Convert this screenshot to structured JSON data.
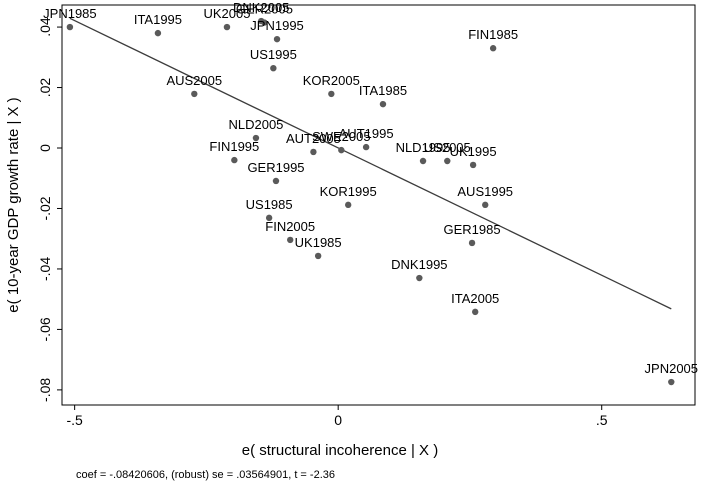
{
  "chart_data": {
    "type": "scatter",
    "xlabel": "e( structural incoherence | X )",
    "ylabel": "e( 10-year GDP growth rate | X )",
    "note": "coef = -.08420606, (robust) se = .03564901, t = -2.36",
    "color": "#5a5a5a",
    "labels": [
      "JPN1985",
      "ITA1995",
      "UK2005",
      "DNK2005",
      "GER2005",
      "JPN1995",
      "FIN1985",
      "US1995",
      "AUS2005",
      "KOR2005",
      "ITA1985",
      "NLD2005",
      "AUT1995",
      "SWE2005",
      "AUT2005",
      "FIN1995",
      "NLD1995",
      "US2005",
      "UK1995",
      "GER1995",
      "KOR1995",
      "AUS1995",
      "US1985",
      "FIN2005",
      "GER1985",
      "UK1985",
      "DNK1995",
      "ITA2005",
      "JPN2005"
    ],
    "x": [
      -0.509,
      -0.342,
      -0.211,
      -0.146,
      -0.14,
      -0.116,
      0.294,
      -0.123,
      -0.273,
      -0.013,
      0.085,
      -0.156,
      0.053,
      0.006,
      -0.047,
      -0.197,
      0.161,
      0.207,
      0.256,
      -0.118,
      0.019,
      0.279,
      -0.131,
      -0.091,
      0.254,
      -0.038,
      0.154,
      0.26,
      0.632
    ],
    "values": [
      0.04,
      0.038,
      0.04,
      0.042,
      0.0415,
      0.036,
      0.033,
      0.0264,
      0.0179,
      0.0179,
      0.0145,
      0.0033,
      0.0003,
      -0.0007,
      -0.0013,
      -0.004,
      -0.0043,
      -0.0043,
      -0.0056,
      -0.0109,
      -0.0188,
      -0.0188,
      -0.0231,
      -0.0304,
      -0.0314,
      -0.0357,
      -0.043,
      -0.0542,
      -0.0774
    ],
    "fit": {
      "color": "#3c3c3c",
      "x": [
        -0.509,
        0.632
      ],
      "y": [
        0.0429,
        -0.0532
      ]
    },
    "xlim": [
      -0.524,
      0.677
    ],
    "ylim": [
      -0.085,
      0.0473
    ],
    "xticks": [
      {
        "value": -0.5,
        "label": "-.5"
      },
      0,
      {
        "value": 0.5,
        "label": ".5"
      }
    ],
    "yticks": [
      {
        "value": 0.04,
        "label": ".04"
      },
      {
        "value": 0.02,
        "label": ".02"
      },
      0,
      {
        "value": -0.02,
        "label": "-.02"
      },
      {
        "value": -0.04,
        "label": "-.04"
      },
      {
        "value": -0.06,
        "label": "-.06"
      },
      {
        "value": -0.08,
        "label": "-.08"
      }
    ]
  }
}
